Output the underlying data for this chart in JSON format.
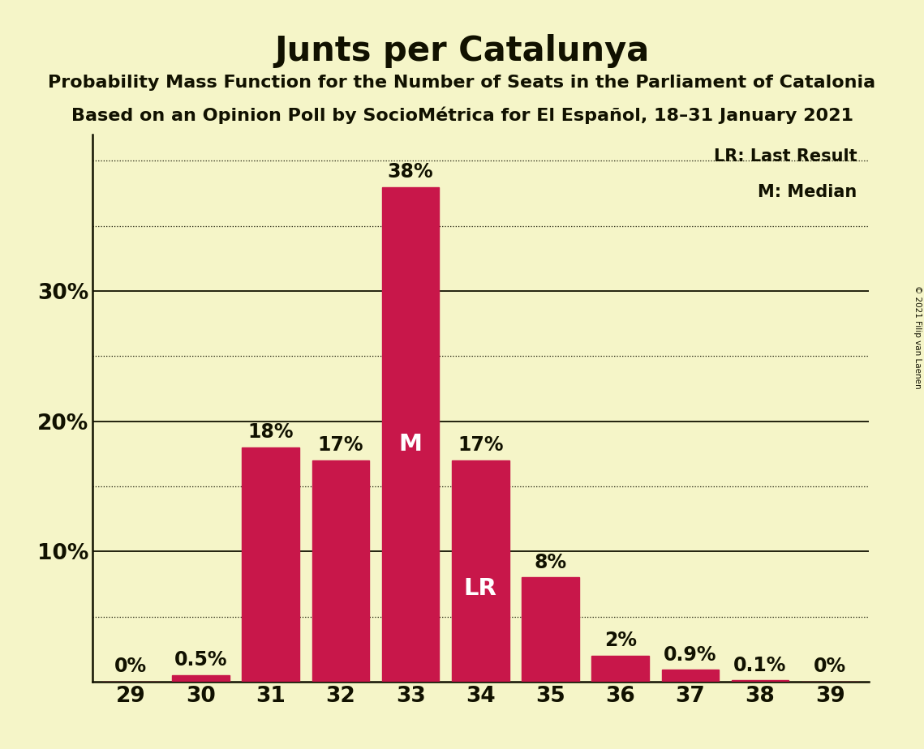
{
  "title": "Junts per Catalunya",
  "subtitle1": "Probability Mass Function for the Number of Seats in the Parliament of Catalonia",
  "subtitle2": "Based on an Opinion Poll by SocioMétrica for El Español, 18–31 January 2021",
  "copyright": "© 2021 Filip van Laenen",
  "categories": [
    29,
    30,
    31,
    32,
    33,
    34,
    35,
    36,
    37,
    38,
    39
  ],
  "values": [
    0.0,
    0.5,
    18.0,
    17.0,
    38.0,
    17.0,
    8.0,
    2.0,
    0.9,
    0.1,
    0.0
  ],
  "bar_color": "#C8174A",
  "background_color": "#F5F5C8",
  "text_color": "#111100",
  "title_fontsize": 30,
  "subtitle_fontsize": 16,
  "label_fontsize": 17,
  "tick_fontsize": 19,
  "legend_fontsize": 15,
  "ylim": [
    0,
    42
  ],
  "solid_ticks": [
    10,
    20,
    30
  ],
  "dotted_ticks": [
    5,
    15,
    25,
    35,
    40
  ],
  "median_seat": 33,
  "lr_seat": 34,
  "legend_lr": "LR: Last Result",
  "legend_m": "M: Median",
  "bar_labels": [
    "0%",
    "0.5%",
    "18%",
    "17%",
    "38%",
    "17%",
    "8%",
    "2%",
    "0.9%",
    "0.1%",
    "0%"
  ]
}
